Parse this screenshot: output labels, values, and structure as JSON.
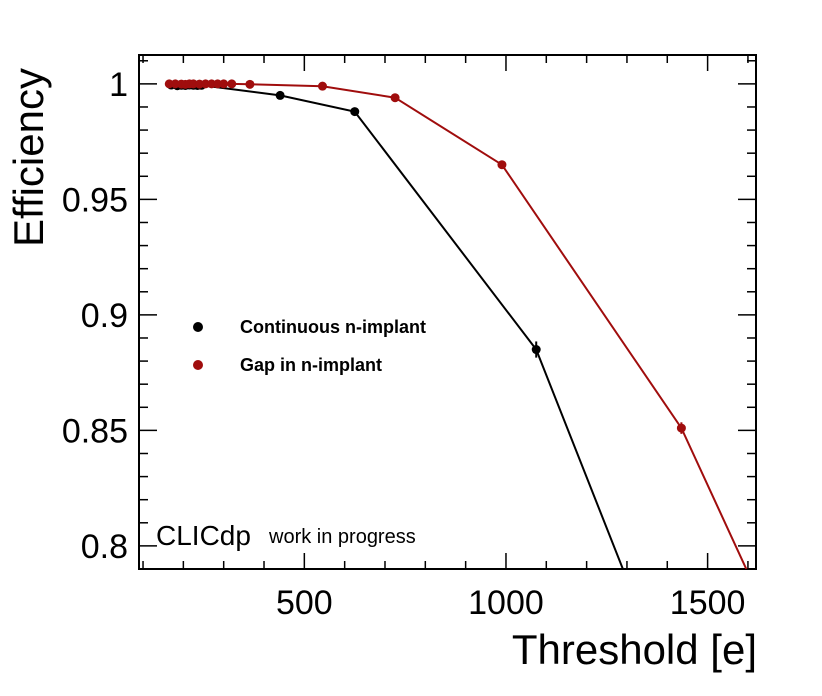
{
  "chart_data": {
    "type": "line",
    "title": "",
    "xlabel": "Threshold [e]",
    "ylabel": "Efficiency",
    "xlim": [
      90,
      1620
    ],
    "ylim": [
      0.79,
      1.0125
    ],
    "xticks": [
      500,
      1000,
      1500
    ],
    "xtick_labels": [
      "500",
      "1000",
      "1500"
    ],
    "yticks": [
      0.8,
      0.85,
      0.9,
      0.95,
      1.0
    ],
    "ytick_labels": [
      "0.8",
      "0.85",
      "0.9",
      "0.95",
      "1"
    ],
    "grid": false,
    "legend_position": "middle-left",
    "annotation": {
      "main": "CLICdp",
      "sub": "work in progress"
    },
    "series": [
      {
        "name": "Continuous n-implant",
        "color": "#000000",
        "x": [
          170,
          185,
          195,
          205,
          215,
          225,
          235,
          245,
          440,
          625,
          1075
        ],
        "y": [
          0.9995,
          0.9992,
          0.9994,
          0.9993,
          0.9995,
          0.9994,
          0.9993,
          0.9994,
          0.995,
          0.988,
          0.885
        ],
        "yerr": [
          0.0005,
          0.0005,
          0.0005,
          0.0005,
          0.0005,
          0.0005,
          0.0005,
          0.0005,
          0.0006,
          0.0008,
          0.0035
        ],
        "tail_to": [
          1300,
          0.7855
        ]
      },
      {
        "name": "Gap in n-implant",
        "color": "#a00d0d",
        "x": [
          165,
          180,
          195,
          205,
          215,
          225,
          240,
          255,
          270,
          285,
          300,
          320,
          365,
          545,
          725,
          990,
          1435
        ],
        "y": [
          1.0,
          1.0,
          0.9999,
          0.9998,
          1.0,
          1.0,
          0.9999,
          1.0,
          1.0,
          1.0,
          1.0,
          1.0,
          0.9998,
          0.999,
          0.994,
          0.965,
          0.851
        ],
        "yerr": [
          0.0003,
          0.0003,
          0.0003,
          0.0003,
          0.0003,
          0.0003,
          0.0003,
          0.0003,
          0.0003,
          0.0003,
          0.0003,
          0.0003,
          0.0003,
          0.0004,
          0.0006,
          0.001,
          0.0025
        ],
        "tail_to": [
          1600,
          0.7885
        ]
      }
    ]
  }
}
